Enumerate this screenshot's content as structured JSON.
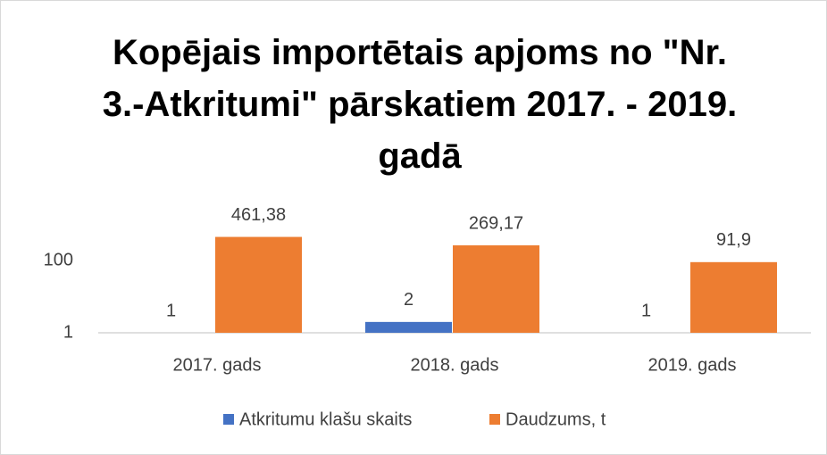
{
  "chart_data": {
    "type": "bar",
    "title": "Kopējais importētais apjoms no \"Nr. 3.-Atkritumi\" pārskatiem 2017. - 2019. gadā",
    "categories": [
      "2017. gads",
      "2018. gads",
      "2019. gads"
    ],
    "series": [
      {
        "name": "Atkritumu klašu skaits",
        "color": "#4472c4",
        "values": [
          1,
          2,
          1
        ]
      },
      {
        "name": "Daudzums, t",
        "color": "#ed7d31",
        "values": [
          461.38,
          269.17,
          91.9
        ],
        "value_labels": [
          "461,38",
          "269,17",
          "91,9"
        ]
      }
    ],
    "log_scale": true,
    "ylim": [
      1,
      1000
    ],
    "yticks": [
      1,
      100
    ],
    "grid": false,
    "legend": "bottom"
  }
}
